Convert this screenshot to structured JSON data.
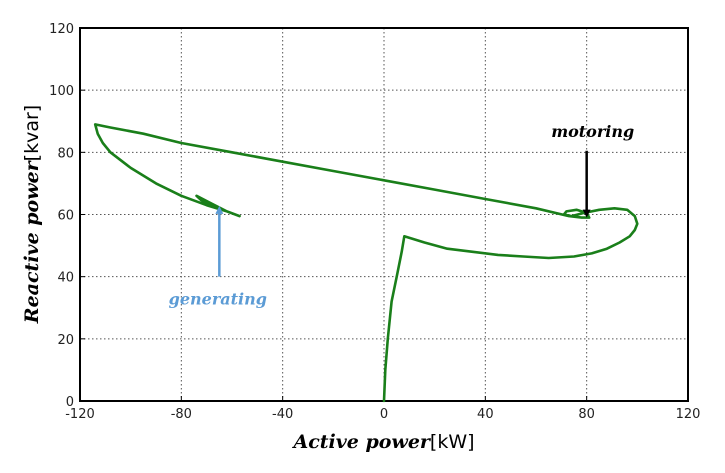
{
  "chart_data": {
    "type": "line",
    "title": "",
    "xlabel": "Active power",
    "xlabel_unit": "[kW]",
    "ylabel": "Reactive power",
    "ylabel_unit": "[kvar]",
    "xlim": [
      -120,
      120
    ],
    "ylim": [
      0,
      120
    ],
    "xticks": [
      -120,
      -80,
      -40,
      0,
      40,
      80,
      120
    ],
    "yticks": [
      0,
      20,
      40,
      60,
      80,
      100,
      120
    ],
    "xtick_labels": [
      "-120",
      "-80",
      "-40",
      "0",
      "40",
      "80",
      "120"
    ],
    "ytick_labels": [
      "0",
      "20",
      "40",
      "60",
      "80",
      "100",
      "120"
    ],
    "grid": true,
    "series": [
      {
        "color": "#1a7f1a",
        "x": [
          0,
          0.5,
          1.5,
          3,
          5,
          7,
          8,
          16,
          25,
          35,
          45,
          55,
          65,
          75,
          82,
          88,
          93,
          97,
          99,
          100,
          99,
          96,
          91,
          85,
          79,
          74,
          71,
          72,
          76,
          80,
          81,
          78,
          73,
          60,
          40,
          20,
          0,
          -20,
          -40,
          -60,
          -80,
          -95,
          -108,
          -114,
          -113,
          -111,
          -108,
          -100,
          -90,
          -80,
          -70,
          -62,
          -57,
          -62,
          -68,
          -74,
          -72,
          -67
        ],
        "y": [
          0,
          10,
          20,
          32,
          40,
          48,
          53,
          51,
          49,
          48,
          47,
          46.5,
          46,
          46.5,
          47.5,
          49,
          51,
          53,
          55,
          57,
          59.5,
          61.5,
          62,
          61.5,
          60.5,
          59.5,
          60,
          61,
          61.5,
          60.5,
          59,
          59,
          59.5,
          62,
          65,
          68,
          71,
          74,
          77,
          80,
          83,
          86,
          88,
          89,
          86,
          83,
          80,
          75,
          70,
          66,
          63,
          61,
          59.5,
          61,
          63.5,
          66,
          64.5,
          62.5
        ]
      }
    ],
    "annotations": [
      {
        "text": "motoring",
        "color": "#000000",
        "label_at": [
          66,
          85
        ],
        "arrow_from": [
          80,
          80.5
        ],
        "arrow_to": [
          80,
          60.3
        ]
      },
      {
        "text": "generating",
        "color": "#5b9bd5",
        "label_at": [
          -85,
          31
        ],
        "arrow_from": [
          -65,
          40
        ],
        "arrow_to": [
          -65,
          61.5
        ]
      }
    ]
  }
}
